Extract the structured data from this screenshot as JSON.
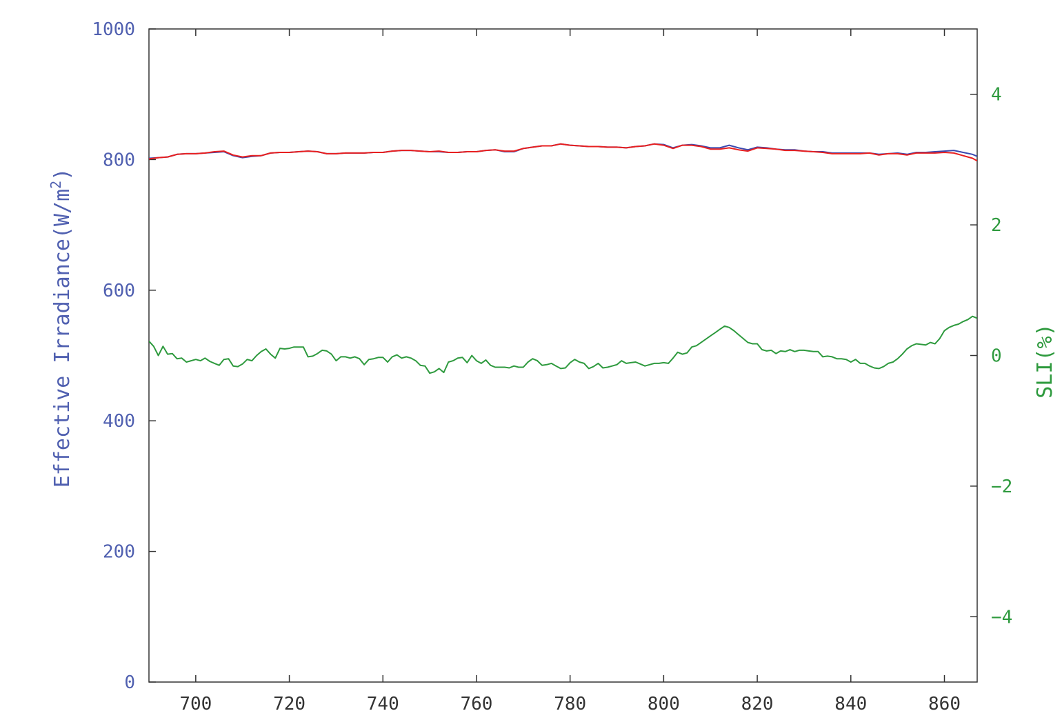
{
  "chart_data": {
    "type": "line",
    "title": "",
    "xlabel": "",
    "xlim": [
      690,
      867
    ],
    "x_ticks": [
      700,
      720,
      740,
      760,
      780,
      800,
      820,
      840,
      860
    ],
    "x_tick_labels": [
      "700",
      "720",
      "740",
      "760",
      "780",
      "800",
      "820",
      "840",
      "860"
    ],
    "y_left": {
      "label": "Effective Irradiance(W/m",
      "label_sup": "2",
      "label_end": ")",
      "ylim": [
        0,
        1000
      ],
      "ticks": [
        0,
        200,
        400,
        600,
        800,
        1000
      ],
      "tick_labels": [
        "0",
        "200",
        "400",
        "600",
        "800",
        "1000"
      ],
      "color": "#5060b0"
    },
    "y_right": {
      "label": "SLI(%)",
      "ylim": [
        -5,
        5
      ],
      "ticks": [
        -4,
        -2,
        0,
        2,
        4
      ],
      "tick_labels": [
        "-4",
        "-2",
        "0",
        "2",
        "4"
      ],
      "color": "#2e9a3e"
    },
    "grid": false,
    "legend": "none",
    "series": [
      {
        "axis": "left",
        "color": "#3b4ab0",
        "x": [
          690,
          692,
          694,
          696,
          698,
          700,
          702,
          704,
          706,
          708,
          710,
          712,
          714,
          716,
          718,
          720,
          722,
          724,
          726,
          728,
          730,
          732,
          734,
          736,
          738,
          740,
          742,
          744,
          746,
          748,
          750,
          752,
          754,
          756,
          758,
          760,
          762,
          764,
          766,
          768,
          770,
          772,
          774,
          776,
          778,
          780,
          782,
          784,
          786,
          788,
          790,
          792,
          794,
          796,
          798,
          800,
          802,
          804,
          806,
          808,
          810,
          812,
          814,
          816,
          818,
          820,
          822,
          824,
          826,
          828,
          830,
          832,
          834,
          836,
          838,
          840,
          842,
          844,
          846,
          848,
          850,
          852,
          854,
          856,
          858,
          860,
          862,
          864,
          866,
          867
        ],
        "y": [
          802,
          803,
          804,
          808,
          809,
          809,
          810,
          811,
          812,
          806,
          803,
          805,
          806,
          810,
          811,
          811,
          812,
          813,
          812,
          809,
          809,
          810,
          810,
          810,
          811,
          811,
          813,
          814,
          814,
          813,
          812,
          812,
          811,
          811,
          812,
          812,
          814,
          815,
          812,
          812,
          817,
          819,
          821,
          821,
          824,
          822,
          821,
          820,
          820,
          819,
          819,
          818,
          820,
          821,
          824,
          823,
          818,
          822,
          823,
          821,
          818,
          818,
          822,
          818,
          815,
          819,
          818,
          816,
          815,
          815,
          813,
          812,
          812,
          810,
          810,
          810,
          810,
          810,
          808,
          809,
          810,
          808,
          811,
          811,
          812,
          813,
          814,
          811,
          808,
          805
        ]
      },
      {
        "axis": "left",
        "color": "#e82020",
        "x": [
          690,
          692,
          694,
          696,
          698,
          700,
          702,
          704,
          706,
          708,
          710,
          712,
          714,
          716,
          718,
          720,
          722,
          724,
          726,
          728,
          730,
          732,
          734,
          736,
          738,
          740,
          742,
          744,
          746,
          748,
          750,
          752,
          754,
          756,
          758,
          760,
          762,
          764,
          766,
          768,
          770,
          772,
          774,
          776,
          778,
          780,
          782,
          784,
          786,
          788,
          790,
          792,
          794,
          796,
          798,
          800,
          802,
          804,
          806,
          808,
          810,
          812,
          814,
          816,
          818,
          820,
          822,
          824,
          826,
          828,
          830,
          832,
          834,
          836,
          838,
          840,
          842,
          844,
          846,
          848,
          850,
          852,
          854,
          856,
          858,
          860,
          862,
          864,
          866,
          867
        ],
        "y": [
          801,
          803,
          804,
          808,
          809,
          809,
          810,
          812,
          813,
          807,
          804,
          806,
          806,
          810,
          811,
          811,
          812,
          813,
          812,
          809,
          809,
          810,
          810,
          810,
          811,
          811,
          813,
          814,
          814,
          813,
          812,
          813,
          811,
          811,
          812,
          812,
          814,
          815,
          813,
          813,
          817,
          819,
          821,
          821,
          824,
          822,
          821,
          820,
          820,
          819,
          819,
          818,
          820,
          821,
          824,
          822,
          817,
          822,
          822,
          820,
          816,
          816,
          818,
          815,
          813,
          818,
          817,
          816,
          814,
          814,
          813,
          812,
          811,
          809,
          809,
          809,
          809,
          810,
          807,
          809,
          809,
          807,
          810,
          810,
          810,
          811,
          810,
          806,
          802,
          798
        ]
      },
      {
        "axis": "right",
        "color": "#2e9a3e",
        "x": [
          690,
          691,
          692,
          693,
          694,
          695,
          696,
          697,
          698,
          699,
          700,
          701,
          702,
          703,
          704,
          705,
          706,
          707,
          708,
          709,
          710,
          711,
          712,
          713,
          714,
          715,
          716,
          717,
          718,
          719,
          720,
          721,
          722,
          723,
          724,
          725,
          726,
          727,
          728,
          729,
          730,
          731,
          732,
          733,
          734,
          735,
          736,
          737,
          738,
          739,
          740,
          741,
          742,
          743,
          744,
          745,
          746,
          747,
          748,
          749,
          750,
          751,
          752,
          753,
          754,
          755,
          756,
          757,
          758,
          759,
          760,
          761,
          762,
          763,
          764,
          765,
          766,
          767,
          768,
          769,
          770,
          771,
          772,
          773,
          774,
          775,
          776,
          777,
          778,
          779,
          780,
          781,
          782,
          783,
          784,
          785,
          786,
          787,
          788,
          789,
          790,
          791,
          792,
          793,
          794,
          795,
          796,
          797,
          798,
          799,
          800,
          801,
          802,
          803,
          804,
          805,
          806,
          807,
          808,
          809,
          810,
          811,
          812,
          813,
          814,
          815,
          816,
          817,
          818,
          819,
          820,
          821,
          822,
          823,
          824,
          825,
          826,
          827,
          828,
          829,
          830,
          831,
          832,
          833,
          834,
          835,
          836,
          837,
          838,
          839,
          840,
          841,
          842,
          843,
          844,
          845,
          846,
          847,
          848,
          849,
          850,
          851,
          852,
          853,
          854,
          855,
          856,
          857,
          858,
          859,
          860,
          861,
          862,
          863,
          864,
          865,
          866,
          867
        ],
        "y": [
          0.22,
          0.14,
          0.0,
          0.14,
          0.02,
          0.03,
          -0.05,
          -0.04,
          -0.1,
          -0.08,
          -0.06,
          -0.08,
          -0.04,
          -0.09,
          -0.12,
          -0.15,
          -0.06,
          -0.05,
          -0.16,
          -0.17,
          -0.13,
          -0.06,
          -0.08,
          0.0,
          0.06,
          0.1,
          0.02,
          -0.04,
          0.11,
          0.1,
          0.11,
          0.13,
          0.13,
          0.13,
          -0.02,
          -0.01,
          0.03,
          0.08,
          0.07,
          0.02,
          -0.08,
          -0.02,
          -0.02,
          -0.04,
          -0.02,
          -0.05,
          -0.14,
          -0.06,
          -0.05,
          -0.03,
          -0.03,
          -0.1,
          -0.02,
          0.01,
          -0.04,
          -0.02,
          -0.04,
          -0.08,
          -0.15,
          -0.16,
          -0.27,
          -0.25,
          -0.2,
          -0.26,
          -0.1,
          -0.08,
          -0.04,
          -0.03,
          -0.11,
          0.0,
          -0.08,
          -0.12,
          -0.07,
          -0.15,
          -0.18,
          -0.18,
          -0.18,
          -0.19,
          -0.16,
          -0.18,
          -0.18,
          -0.1,
          -0.05,
          -0.08,
          -0.15,
          -0.14,
          -0.12,
          -0.16,
          -0.2,
          -0.19,
          -0.11,
          -0.06,
          -0.1,
          -0.12,
          -0.2,
          -0.17,
          -0.12,
          -0.19,
          -0.18,
          -0.16,
          -0.14,
          -0.08,
          -0.12,
          -0.11,
          -0.1,
          -0.13,
          -0.16,
          -0.14,
          -0.12,
          -0.12,
          -0.11,
          -0.12,
          -0.04,
          0.05,
          0.02,
          0.04,
          0.13,
          0.15,
          0.2,
          0.25,
          0.3,
          0.35,
          0.4,
          0.45,
          0.43,
          0.38,
          0.32,
          0.26,
          0.2,
          0.18,
          0.18,
          0.09,
          0.07,
          0.08,
          0.03,
          0.07,
          0.06,
          0.09,
          0.06,
          0.08,
          0.08,
          0.07,
          0.06,
          0.06,
          -0.02,
          -0.01,
          -0.02,
          -0.05,
          -0.05,
          -0.06,
          -0.1,
          -0.06,
          -0.12,
          -0.12,
          -0.16,
          -0.19,
          -0.2,
          -0.17,
          -0.12,
          -0.1,
          -0.05,
          0.02,
          0.1,
          0.15,
          0.18,
          0.17,
          0.16,
          0.2,
          0.18,
          0.26,
          0.38,
          0.43,
          0.46,
          0.48,
          0.52,
          0.55,
          0.6,
          0.57
        ]
      }
    ]
  }
}
